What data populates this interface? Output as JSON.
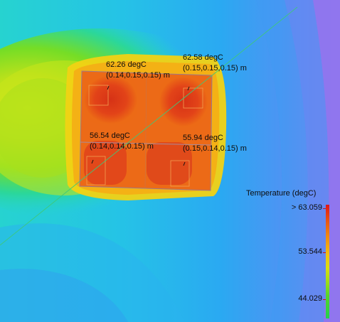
{
  "probes": [
    {
      "value": "62.26 degC",
      "coords": "(0.14,0.15,0.15) m"
    },
    {
      "value": "62.58 degC",
      "coords": "(0.15,0.15,0.15) m"
    },
    {
      "value": "56.54 degC",
      "coords": "(0.14,0.14,0.15) m"
    },
    {
      "value": "55.94 degC",
      "coords": "(0.15,0.14,0.15) m"
    }
  ],
  "legend": {
    "title": "Temperature (degC)",
    "max_label": "> 63.059",
    "mid_label": "53.544",
    "low_label": "44.029"
  },
  "colors": {
    "hot": "#e23a18",
    "warm": "#f3c515",
    "mid": "#8ee21e",
    "cool": "#1fd7c8",
    "cold": "#2fa8f0",
    "coldest": "#7a7af0"
  }
}
